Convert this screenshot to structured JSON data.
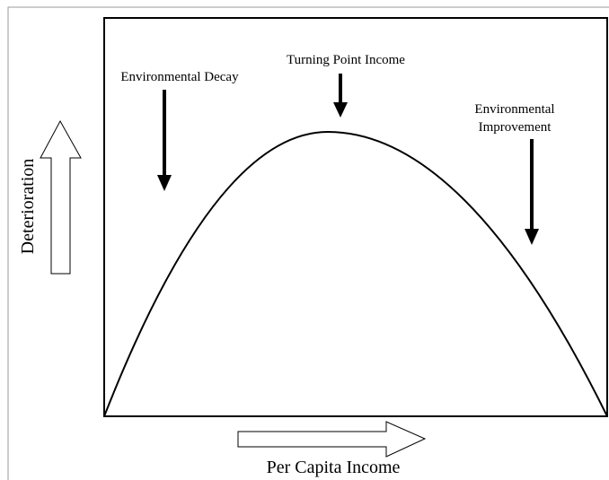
{
  "labels": {
    "decay": "Environmental Decay",
    "turning_point": "Turning Point Income",
    "improvement": [
      "Environmental",
      "Improvement"
    ]
  },
  "axes": {
    "y": "Deterioration",
    "x": "Per Capita Income"
  }
}
